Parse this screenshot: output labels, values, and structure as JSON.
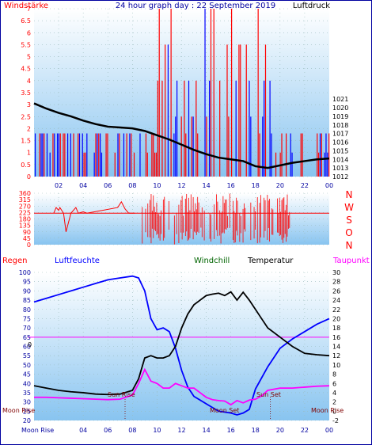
{
  "colors": {
    "wind": "#ff0000",
    "gust": "#0000ff",
    "pressure": "#000000",
    "humidity": "#0000ff",
    "windchill": "#006400",
    "temperature": "#000000",
    "dewpoint": "#ff00ff",
    "frame": "#0000a0",
    "plot_top": "#ffffff",
    "plot_bottom": "#88c4f0"
  },
  "hours": [
    "02",
    "04",
    "06",
    "08",
    "10",
    "12",
    "14",
    "16",
    "18",
    "20",
    "22",
    "00"
  ],
  "chart_data": [
    {
      "type": "line",
      "title": "24 hour graph day : 22 September 2019",
      "left_label": "Windstärke",
      "right_label": "Luftdruck",
      "x_range": [
        0,
        24
      ],
      "y_left_range": [
        0,
        7
      ],
      "y_left_ticks": [
        "0",
        "0.5",
        "1",
        "1.5",
        "2",
        "2.5",
        "3",
        "3.5",
        "4",
        "4.5",
        "5",
        "5.5",
        "6",
        "6.5",
        "7"
      ],
      "y_right_range": [
        1012,
        1031.5
      ],
      "y_right_ticks": [
        "1012",
        "1013",
        "1014",
        "1015",
        "1016",
        "1017",
        "1018",
        "1019",
        "1020",
        "1021"
      ],
      "series": [
        {
          "key": "pressure",
          "axis": "right",
          "x": [
            0,
            1,
            2,
            3,
            4,
            5,
            6,
            7,
            8,
            9,
            10,
            11,
            12,
            13,
            14,
            15,
            16,
            17,
            18,
            19,
            20,
            21,
            22,
            23,
            24
          ],
          "y": [
            1020.5,
            1019.9,
            1019.4,
            1019.0,
            1018.5,
            1018.1,
            1017.8,
            1017.7,
            1017.6,
            1017.3,
            1016.8,
            1016.3,
            1015.7,
            1015.1,
            1014.6,
            1014.2,
            1014.0,
            1013.8,
            1013.2,
            1013.0,
            1013.3,
            1013.6,
            1013.8,
            1014.0,
            1014.1
          ]
        }
      ]
    },
    {
      "type": "line",
      "right_labels": [
        "N",
        "W",
        "S",
        "O",
        "N"
      ],
      "x_range": [
        0,
        24
      ],
      "y_range": [
        0,
        360
      ],
      "y_ticks": [
        "0",
        "45",
        "90",
        "135",
        "180",
        "225",
        "270",
        "315",
        "360"
      ],
      "baseline": 220,
      "series": [
        {
          "key": "wind_direction",
          "x": [
            1.6,
            1.8,
            2.0,
            2.1,
            2.4,
            2.6,
            3.0,
            3.4,
            3.6,
            4.0,
            4.3,
            6.8,
            7.1,
            7.4,
            7.7,
            8.2
          ],
          "y": [
            220,
            260,
            240,
            260,
            220,
            90,
            220,
            260,
            220,
            230,
            220,
            260,
            300,
            250,
            220,
            220
          ]
        }
      ]
    },
    {
      "type": "line",
      "labels": {
        "rain": "Regen",
        "humidity": "Luftfeuchte",
        "windchill": "Windchill",
        "temperature": "Temperatur",
        "dewpoint": "Taupunkt",
        "moon_rise_left": "Moon Rise",
        "moon_rise_right": "Moon Rise",
        "sun_rise": "Sun Rise",
        "sun_set": "Sun Set",
        "moon_set": "Moon Set",
        "bottom_moon_rise": "Moon Rise",
        "zero_label": "0"
      },
      "x_range": [
        0,
        24
      ],
      "y_left_range": [
        20,
        100
      ],
      "y_left_ticks": [
        "20",
        "25",
        "30",
        "35",
        "40",
        "45",
        "50",
        "55",
        "60",
        "65",
        "70",
        "75",
        "80",
        "85",
        "90",
        "95",
        "100"
      ],
      "y_right_range": [
        -2,
        30
      ],
      "y_right_ticks": [
        "-2",
        "0",
        "2",
        "4",
        "6",
        "8",
        "10",
        "12",
        "14",
        "16",
        "18",
        "20",
        "22",
        "24",
        "26",
        "28",
        "30"
      ],
      "zero_line": 16,
      "series": [
        {
          "key": "humidity",
          "axis": "left",
          "x": [
            0,
            1,
            2,
            3,
            4,
            5,
            6,
            7,
            8,
            8.5,
            9,
            9.5,
            10,
            10.5,
            11,
            11.5,
            12,
            12.5,
            13,
            14,
            15,
            16,
            16.5,
            17,
            17.5,
            18,
            19,
            20,
            21,
            22,
            23,
            24
          ],
          "y": [
            84,
            86,
            88,
            90,
            92,
            94,
            96,
            97,
            98,
            97,
            90,
            75,
            69,
            70,
            68,
            59,
            47,
            38,
            33,
            29,
            25,
            24,
            23,
            24,
            26,
            37,
            49,
            59,
            64,
            68,
            72,
            75
          ]
        },
        {
          "key": "temperature",
          "axis": "right",
          "x": [
            0,
            1,
            2,
            3,
            4,
            5,
            6,
            7,
            8,
            8.5,
            9,
            9.5,
            10,
            10.5,
            11,
            11.5,
            12,
            12.5,
            13,
            13.5,
            14,
            14.5,
            15,
            15.5,
            16,
            16.5,
            17,
            17.5,
            18,
            18.5,
            19,
            20,
            21,
            22,
            23,
            24
          ],
          "y": [
            5.5,
            5,
            4.5,
            4.2,
            4,
            3.7,
            3.6,
            3.7,
            4.5,
            7,
            11.5,
            12,
            11.5,
            11.5,
            12,
            14,
            18,
            21,
            23,
            24,
            25,
            25.3,
            25.5,
            25,
            25.8,
            24,
            25.7,
            24,
            22,
            20,
            18,
            16,
            14,
            12.5,
            12.2,
            12
          ]
        },
        {
          "key": "dewpoint",
          "axis": "right",
          "x": [
            0,
            1,
            2,
            3,
            4,
            5,
            6,
            7,
            8,
            8.5,
            9,
            9.5,
            10,
            10.5,
            11,
            11.5,
            12,
            12.5,
            13,
            13.5,
            14,
            14.5,
            15,
            15.5,
            16,
            16.5,
            17,
            17.5,
            18,
            18.5,
            19,
            20,
            21,
            22,
            23,
            24
          ],
          "y": [
            3,
            3,
            2.9,
            2.8,
            2.7,
            2.6,
            2.5,
            2.6,
            3.5,
            6,
            9,
            6.5,
            6,
            5,
            5,
            6,
            5.5,
            5,
            5,
            4,
            3,
            2.5,
            2.3,
            2.2,
            1.4,
            2.3,
            1.8,
            2.4,
            2.6,
            3.3,
            4.5,
            5,
            5,
            5.2,
            5.4,
            5.5
          ]
        }
      ]
    }
  ]
}
